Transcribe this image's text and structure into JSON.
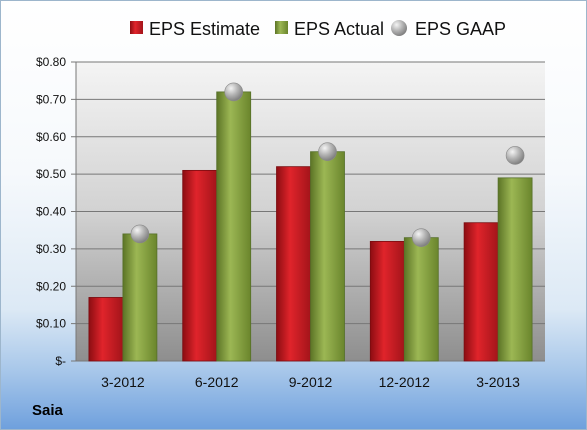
{
  "company": "Saia",
  "colors": {
    "estimate": "#c0171f",
    "actual": "#7f9a3a",
    "gaap": "#a8a8a8"
  },
  "chart_data": {
    "type": "bar",
    "categories": [
      "3-2012",
      "6-2012",
      "9-2012",
      "12-2012",
      "3-2013"
    ],
    "series": [
      {
        "name": "EPS Estimate",
        "type": "bar",
        "values": [
          0.17,
          0.51,
          0.52,
          0.32,
          0.37
        ]
      },
      {
        "name": "EPS Actual",
        "type": "bar",
        "values": [
          0.34,
          0.72,
          0.56,
          0.33,
          0.49
        ]
      },
      {
        "name": "EPS GAAP",
        "type": "scatter",
        "values": [
          0.34,
          0.72,
          0.56,
          0.33,
          0.55
        ]
      }
    ],
    "yticks": [
      "$-",
      "$0.10",
      "$0.20",
      "$0.30",
      "$0.40",
      "$0.50",
      "$0.60",
      "$0.70",
      "$0.80"
    ],
    "ylim": [
      0,
      0.8
    ],
    "grid": true,
    "legend": "top"
  }
}
